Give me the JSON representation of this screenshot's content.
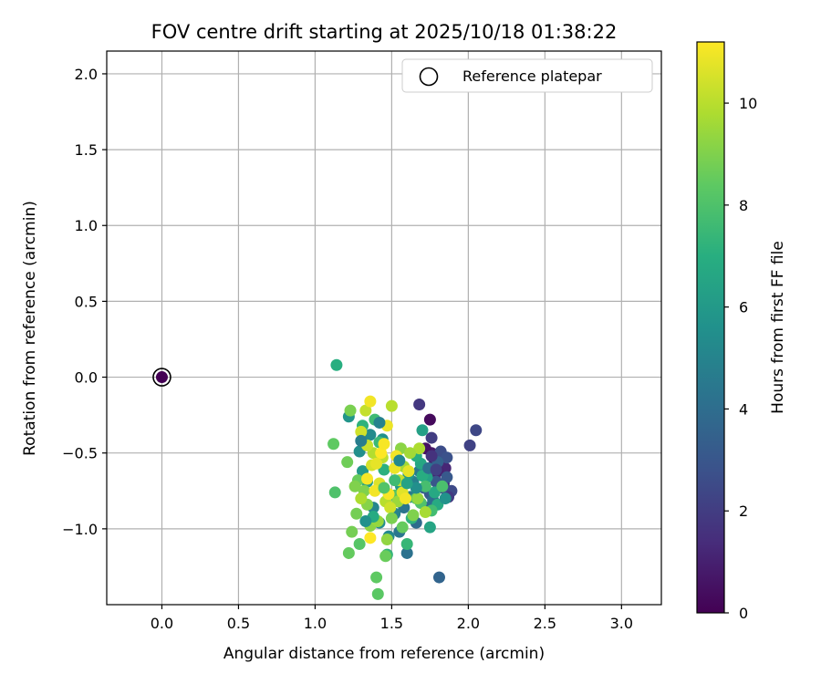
{
  "chart_data": {
    "type": "scatter",
    "title": "FOV centre drift starting at 2025/10/18 01:38:22",
    "xlabel": "Angular distance from reference (arcmin)",
    "ylabel": "Rotation from reference (arcmin)",
    "xlim": [
      -0.36,
      3.26
    ],
    "ylim": [
      -1.5,
      2.15
    ],
    "xticks": [
      0.0,
      0.5,
      1.0,
      1.5,
      2.0,
      2.5,
      3.0
    ],
    "xtick_labels": [
      "0.0",
      "0.5",
      "1.0",
      "1.5",
      "2.0",
      "2.5",
      "3.0"
    ],
    "yticks": [
      -1.0,
      -0.5,
      0.0,
      0.5,
      1.0,
      1.5,
      2.0
    ],
    "ytick_labels": [
      "−1.0",
      "−0.5",
      "0.0",
      "0.5",
      "1.0",
      "1.5",
      "2.0"
    ],
    "grid": true,
    "legend": {
      "position": "top-right",
      "entries": [
        "Reference platepar"
      ]
    },
    "reference_point": {
      "x": 0.0,
      "y": 0.0,
      "hours": 0.0
    },
    "colorbar": {
      "label": "Hours from first FF file",
      "min": 0,
      "max": 11.2,
      "ticks": [
        0,
        2,
        4,
        6,
        8,
        10
      ],
      "tick_labels": [
        "0",
        "2",
        "4",
        "6",
        "8",
        "10"
      ],
      "colormap": "viridis"
    },
    "points": [
      {
        "x": 1.75,
        "y": -0.28,
        "h": 0.3
      },
      {
        "x": 1.78,
        "y": -0.55,
        "h": 0.6
      },
      {
        "x": 1.82,
        "y": -0.58,
        "h": 0.9
      },
      {
        "x": 1.85,
        "y": -0.6,
        "h": 1.2
      },
      {
        "x": 1.8,
        "y": -0.62,
        "h": 1.0
      },
      {
        "x": 1.76,
        "y": -0.5,
        "h": 0.8
      },
      {
        "x": 1.72,
        "y": -0.47,
        "h": 0.5
      },
      {
        "x": 1.84,
        "y": -0.7,
        "h": 1.4
      },
      {
        "x": 1.78,
        "y": -0.66,
        "h": 1.1
      },
      {
        "x": 1.7,
        "y": -0.6,
        "h": 1.5
      },
      {
        "x": 1.68,
        "y": -0.18,
        "h": 1.8
      },
      {
        "x": 1.76,
        "y": -0.4,
        "h": 2.0
      },
      {
        "x": 2.05,
        "y": -0.35,
        "h": 2.4
      },
      {
        "x": 2.01,
        "y": -0.45,
        "h": 2.2
      },
      {
        "x": 1.82,
        "y": -0.49,
        "h": 2.6
      },
      {
        "x": 1.86,
        "y": -0.53,
        "h": 2.8
      },
      {
        "x": 1.89,
        "y": -0.75,
        "h": 2.5
      },
      {
        "x": 1.87,
        "y": -0.79,
        "h": 1.9
      },
      {
        "x": 1.83,
        "y": -0.73,
        "h": 2.7
      },
      {
        "x": 1.79,
        "y": -0.69,
        "h": 3.0
      },
      {
        "x": 1.75,
        "y": -0.77,
        "h": 3.2
      },
      {
        "x": 1.71,
        "y": -0.73,
        "h": 3.4
      },
      {
        "x": 1.86,
        "y": -0.66,
        "h": 3.1
      },
      {
        "x": 1.81,
        "y": -1.32,
        "h": 3.6
      },
      {
        "x": 1.73,
        "y": -0.86,
        "h": 3.8
      },
      {
        "x": 1.77,
        "y": -0.81,
        "h": 4.0
      },
      {
        "x": 1.66,
        "y": -0.96,
        "h": 3.9
      },
      {
        "x": 1.6,
        "y": -1.16,
        "h": 4.2
      },
      {
        "x": 1.55,
        "y": -1.02,
        "h": 4.4
      },
      {
        "x": 1.62,
        "y": -0.79,
        "h": 4.6
      },
      {
        "x": 1.64,
        "y": -0.69,
        "h": 4.8
      },
      {
        "x": 1.68,
        "y": -0.62,
        "h": 4.5
      },
      {
        "x": 1.58,
        "y": -0.86,
        "h": 4.3
      },
      {
        "x": 1.52,
        "y": -0.9,
        "h": 5.0
      },
      {
        "x": 1.48,
        "y": -1.05,
        "h": 5.2
      },
      {
        "x": 1.42,
        "y": -0.96,
        "h": 5.4
      },
      {
        "x": 1.38,
        "y": -0.86,
        "h": 5.1
      },
      {
        "x": 1.44,
        "y": -0.41,
        "h": 5.6
      },
      {
        "x": 1.36,
        "y": -0.38,
        "h": 5.3
      },
      {
        "x": 1.22,
        "y": -0.26,
        "h": 5.8
      },
      {
        "x": 1.29,
        "y": -0.49,
        "h": 5.5
      },
      {
        "x": 1.31,
        "y": -0.62,
        "h": 6.0
      },
      {
        "x": 1.34,
        "y": -0.69,
        "h": 6.2
      },
      {
        "x": 1.56,
        "y": -0.72,
        "h": 6.1
      },
      {
        "x": 1.61,
        "y": -0.64,
        "h": 5.9
      },
      {
        "x": 1.7,
        "y": -0.35,
        "h": 6.3
      },
      {
        "x": 1.73,
        "y": -0.66,
        "h": 6.4
      },
      {
        "x": 1.69,
        "y": -0.57,
        "h": 6.6
      },
      {
        "x": 1.75,
        "y": -0.99,
        "h": 6.5
      },
      {
        "x": 1.8,
        "y": -0.84,
        "h": 6.8
      },
      {
        "x": 1.78,
        "y": -0.76,
        "h": 6.7
      },
      {
        "x": 1.66,
        "y": -0.52,
        "h": 7.0
      },
      {
        "x": 1.7,
        "y": -0.65,
        "h": 6.9
      },
      {
        "x": 1.63,
        "y": -0.93,
        "h": 7.2
      },
      {
        "x": 1.6,
        "y": -1.1,
        "h": 7.4
      },
      {
        "x": 1.47,
        "y": -1.17,
        "h": 7.3
      },
      {
        "x": 1.45,
        "y": -0.61,
        "h": 7.1
      },
      {
        "x": 1.42,
        "y": -0.43,
        "h": 7.5
      },
      {
        "x": 1.39,
        "y": -0.28,
        "h": 7.6
      },
      {
        "x": 1.31,
        "y": -0.32,
        "h": 7.2
      },
      {
        "x": 1.14,
        "y": 0.08,
        "h": 7.0
      },
      {
        "x": 1.72,
        "y": -0.72,
        "h": 7.8
      },
      {
        "x": 1.76,
        "y": -0.88,
        "h": 7.7
      },
      {
        "x": 1.83,
        "y": -0.72,
        "h": 7.9
      },
      {
        "x": 1.69,
        "y": -0.83,
        "h": 8.0
      },
      {
        "x": 1.66,
        "y": -0.8,
        "h": 8.2
      },
      {
        "x": 1.52,
        "y": -0.78,
        "h": 8.1
      },
      {
        "x": 1.41,
        "y": -1.43,
        "h": 8.3
      },
      {
        "x": 1.4,
        "y": -1.32,
        "h": 8.4
      },
      {
        "x": 1.46,
        "y": -1.18,
        "h": 8.6
      },
      {
        "x": 1.29,
        "y": -1.1,
        "h": 8.2
      },
      {
        "x": 1.22,
        "y": -1.16,
        "h": 8.5
      },
      {
        "x": 1.24,
        "y": -1.02,
        "h": 8.8
      },
      {
        "x": 1.13,
        "y": -0.76,
        "h": 8.0
      },
      {
        "x": 1.12,
        "y": -0.44,
        "h": 8.4
      },
      {
        "x": 1.21,
        "y": -0.56,
        "h": 8.7
      },
      {
        "x": 1.23,
        "y": -0.22,
        "h": 8.9
      },
      {
        "x": 1.28,
        "y": -0.68,
        "h": 8.6
      },
      {
        "x": 1.32,
        "y": -0.75,
        "h": 9.0
      },
      {
        "x": 1.34,
        "y": -0.84,
        "h": 9.1
      },
      {
        "x": 1.27,
        "y": -0.9,
        "h": 8.8
      },
      {
        "x": 1.36,
        "y": -0.98,
        "h": 9.2
      },
      {
        "x": 1.41,
        "y": -0.95,
        "h": 9.4
      },
      {
        "x": 1.47,
        "y": -1.07,
        "h": 9.3
      },
      {
        "x": 1.54,
        "y": -0.82,
        "h": 9.5
      },
      {
        "x": 1.58,
        "y": -0.59,
        "h": 9.6
      },
      {
        "x": 1.64,
        "y": -0.91,
        "h": 9.0
      },
      {
        "x": 1.67,
        "y": -0.8,
        "h": 9.4
      },
      {
        "x": 1.72,
        "y": -0.89,
        "h": 9.7
      },
      {
        "x": 1.68,
        "y": -0.47,
        "h": 9.8
      },
      {
        "x": 1.56,
        "y": -0.47,
        "h": 9.2
      },
      {
        "x": 1.5,
        "y": -0.19,
        "h": 10.0
      },
      {
        "x": 1.44,
        "y": -0.53,
        "h": 10.1
      },
      {
        "x": 1.38,
        "y": -0.5,
        "h": 9.9
      },
      {
        "x": 1.33,
        "y": -0.22,
        "h": 10.2
      },
      {
        "x": 1.3,
        "y": -0.36,
        "h": 10.4
      },
      {
        "x": 1.34,
        "y": -0.45,
        "h": 10.3
      },
      {
        "x": 1.37,
        "y": -0.58,
        "h": 10.5
      },
      {
        "x": 1.42,
        "y": -0.7,
        "h": 10.6
      },
      {
        "x": 1.46,
        "y": -0.82,
        "h": 10.0
      },
      {
        "x": 1.49,
        "y": -0.86,
        "h": 10.4
      },
      {
        "x": 1.55,
        "y": -0.68,
        "h": 10.2
      },
      {
        "x": 1.57,
        "y": -0.76,
        "h": 10.7
      },
      {
        "x": 1.61,
        "y": -0.62,
        "h": 10.8
      },
      {
        "x": 1.47,
        "y": -0.32,
        "h": 10.9
      },
      {
        "x": 1.36,
        "y": -0.16,
        "h": 11.0
      },
      {
        "x": 1.34,
        "y": -0.67,
        "h": 11.1
      },
      {
        "x": 1.39,
        "y": -0.75,
        "h": 11.0
      },
      {
        "x": 1.43,
        "y": -0.5,
        "h": 11.2
      },
      {
        "x": 1.45,
        "y": -0.44,
        "h": 11.1
      },
      {
        "x": 1.52,
        "y": -0.6,
        "h": 10.9
      },
      {
        "x": 1.59,
        "y": -0.8,
        "h": 11.0
      },
      {
        "x": 1.36,
        "y": -1.06,
        "h": 11.2
      },
      {
        "x": 1.48,
        "y": -0.77,
        "h": 11.1
      },
      {
        "x": 1.4,
        "y": -0.57,
        "h": 10.8
      },
      {
        "x": 1.53,
        "y": -0.52,
        "h": 11.0
      },
      {
        "x": 1.62,
        "y": -0.5,
        "h": 9.6
      },
      {
        "x": 1.3,
        "y": -0.8,
        "h": 9.8
      },
      {
        "x": 1.26,
        "y": -0.72,
        "h": 9.0
      },
      {
        "x": 1.5,
        "y": -0.93,
        "h": 8.9
      },
      {
        "x": 1.57,
        "y": -0.99,
        "h": 8.5
      },
      {
        "x": 1.74,
        "y": -0.6,
        "h": 4.1
      },
      {
        "x": 1.8,
        "y": -0.56,
        "h": 3.5
      },
      {
        "x": 1.85,
        "y": -0.8,
        "h": 5.7
      },
      {
        "x": 1.66,
        "y": -0.73,
        "h": 5.5
      },
      {
        "x": 1.6,
        "y": -0.7,
        "h": 6.4
      },
      {
        "x": 1.52,
        "y": -0.68,
        "h": 7.6
      },
      {
        "x": 1.45,
        "y": -0.73,
        "h": 8.1
      },
      {
        "x": 1.38,
        "y": -0.92,
        "h": 6.8
      },
      {
        "x": 1.33,
        "y": -0.95,
        "h": 5.6
      },
      {
        "x": 1.3,
        "y": -0.42,
        "h": 4.7
      },
      {
        "x": 1.42,
        "y": -0.3,
        "h": 4.9
      },
      {
        "x": 1.55,
        "y": -0.55,
        "h": 5.2
      },
      {
        "x": 1.76,
        "y": -0.52,
        "h": 1.6
      },
      {
        "x": 1.79,
        "y": -0.61,
        "h": 2.1
      }
    ]
  }
}
